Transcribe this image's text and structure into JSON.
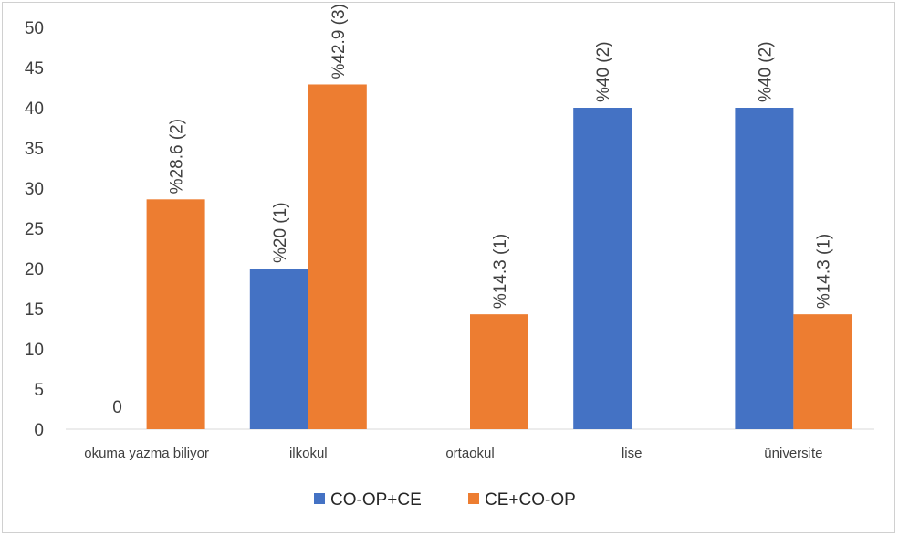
{
  "chart_data": {
    "type": "bar",
    "categories": [
      "okuma yazma biliyor",
      "ilkokul",
      "ortaokul",
      "lise",
      "üniversite"
    ],
    "series": [
      {
        "name": "CO-OP+CE",
        "color": "#4472C4",
        "values": [
          0,
          20,
          0,
          40,
          40
        ],
        "labels": [
          "0",
          "%20 (1)",
          "",
          "%40 (2)",
          "%40 (2)"
        ]
      },
      {
        "name": "CE+CO-OP",
        "color": "#ED7D31",
        "values": [
          28.6,
          42.9,
          14.3,
          0,
          14.3
        ],
        "labels": [
          "%28.6 (2)",
          "%42.9 (3)",
          "%14.3 (1)",
          "",
          "%14.3 (1)"
        ]
      }
    ],
    "yticks": [
      "0",
      "5",
      "10",
      "15",
      "20",
      "25",
      "30",
      "35",
      "40",
      "45",
      "50"
    ],
    "ylim": [
      0,
      50
    ],
    "grid": false,
    "legend_position": "bottom"
  }
}
